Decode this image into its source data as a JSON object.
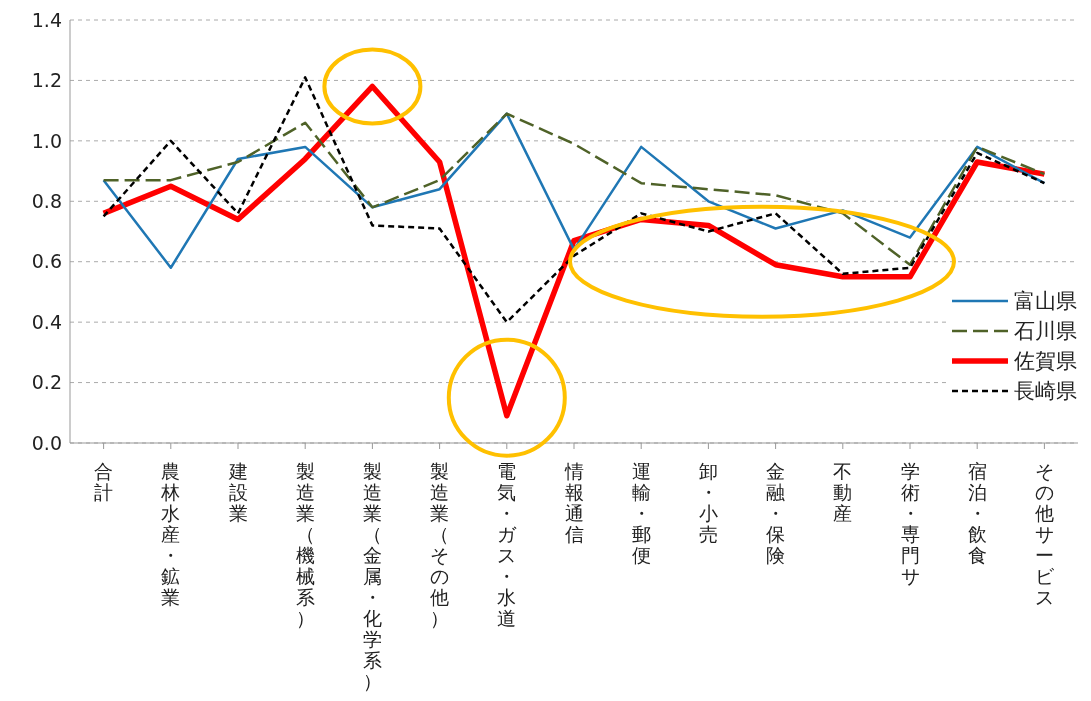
{
  "chart_data": {
    "type": "line",
    "categories": [
      "合計",
      "農林水産・鉱業",
      "建設業",
      "製造業（機械系）",
      "製造業（金属・化学系）",
      "製造業（その他）",
      "電気・ガス・水道",
      "情報通信",
      "運輸・郵便",
      "卸・小売",
      "金融・保険",
      "不動産",
      "学術・専門サ",
      "宿泊・飲食",
      "その他サービス"
    ],
    "series": [
      {
        "name": "富山県",
        "color": "#1f77b4",
        "line_style": "solid",
        "values": [
          0.87,
          0.58,
          0.94,
          0.98,
          0.78,
          0.84,
          1.09,
          0.64,
          0.98,
          0.8,
          0.71,
          0.77,
          0.68,
          0.98,
          0.86
        ]
      },
      {
        "name": "石川県",
        "color": "#4f6228",
        "line_style": "dashed",
        "values": [
          0.87,
          0.87,
          0.93,
          1.06,
          0.78,
          0.87,
          1.09,
          0.99,
          0.86,
          0.84,
          0.82,
          0.76,
          0.59,
          0.98,
          0.89
        ]
      },
      {
        "name": "佐賀県",
        "color": "#ff0000",
        "line_style": "solid",
        "values": [
          0.76,
          0.85,
          0.74,
          0.94,
          1.18,
          0.93,
          0.09,
          0.67,
          0.74,
          0.72,
          0.59,
          0.55,
          0.55,
          0.93,
          0.89
        ]
      },
      {
        "name": "長崎県",
        "color": "#000000",
        "line_style": "dotted",
        "values": [
          0.75,
          1.0,
          0.76,
          1.21,
          0.72,
          0.71,
          0.4,
          0.62,
          0.76,
          0.7,
          0.76,
          0.56,
          0.58,
          0.96,
          0.86
        ]
      }
    ],
    "ylim": [
      0,
      1.4
    ],
    "yticks": [
      {
        "value": 0,
        "label": "0.0"
      },
      {
        "value": 0.2,
        "label": "0.2"
      },
      {
        "value": 0.4,
        "label": "0.4"
      },
      {
        "value": 0.6,
        "label": "0.6"
      },
      {
        "value": 0.8,
        "label": "0.8"
      },
      {
        "value": 1.0,
        "label": "1.0"
      },
      {
        "value": 1.2,
        "label": "1.2"
      },
      {
        "value": 1.4,
        "label": "1.4"
      }
    ],
    "grid": "y",
    "legend": "right",
    "marker": "none"
  }
}
